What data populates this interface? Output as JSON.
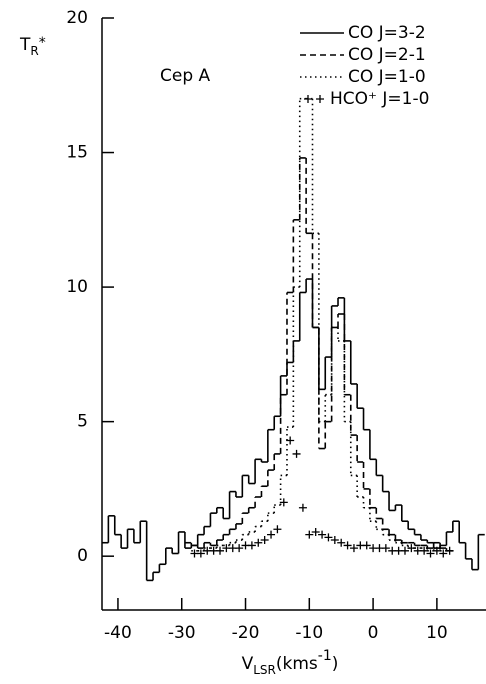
{
  "chart_data": {
    "type": "line",
    "annotation": "Cep A",
    "xlabel": [
      {
        "text": "V"
      },
      {
        "text": "LSR",
        "shift": "sub"
      },
      {
        "text": "(kms"
      },
      {
        "text": "-1",
        "shift": "super"
      },
      {
        "text": ")"
      }
    ],
    "ylabel": [
      {
        "text": "T"
      },
      {
        "text": "R",
        "shift": "sub"
      },
      {
        "text": "*",
        "shift": "super"
      }
    ],
    "xlim": [
      -42.5,
      17.7
    ],
    "xticks": [
      -40,
      -30,
      -20,
      -10,
      0,
      10
    ],
    "ylim": [
      -2,
      20
    ],
    "yticks": [
      0,
      5,
      10,
      15,
      20
    ],
    "legend": "upper right",
    "series": [
      {
        "name": "CO J=3-2",
        "color": "#000000",
        "style": "solid",
        "x": [
          -42,
          -41,
          -40,
          -39,
          -38,
          -37,
          -36,
          -35,
          -34,
          -33,
          -32,
          -31,
          -30,
          -29,
          -28,
          -27,
          -26,
          -25,
          -24,
          -23,
          -22,
          -21,
          -20,
          -19,
          -18,
          -17,
          -16,
          -15,
          -14,
          -13,
          -12,
          -11,
          -10,
          -9,
          -8,
          -7,
          -6,
          -5,
          -4,
          -3,
          -2,
          -1,
          0,
          1,
          2,
          3,
          4,
          5,
          6,
          7,
          8,
          9,
          10,
          11,
          12,
          13,
          14,
          15,
          16,
          17
        ],
        "values": [
          0.5,
          1.5,
          0.8,
          0.3,
          1.0,
          0.5,
          1.3,
          -0.9,
          -0.6,
          -0.3,
          0.3,
          0.1,
          0.9,
          0.3,
          0.4,
          0.8,
          1.1,
          1.6,
          1.8,
          1.4,
          2.4,
          2.2,
          3.0,
          2.7,
          3.6,
          3.5,
          4.7,
          5.2,
          6.7,
          7.2,
          8.0,
          9.8,
          10.3,
          8.5,
          6.2,
          7.4,
          9.3,
          9.6,
          8.0,
          6.4,
          5.5,
          4.7,
          3.6,
          3.0,
          2.4,
          1.7,
          1.9,
          1.3,
          1.0,
          0.8,
          0.6,
          0.5,
          0.3,
          0.4,
          0.9,
          1.3,
          0.5,
          -0.1,
          -0.5,
          0.8
        ]
      },
      {
        "name": "CO J=2-1",
        "color": "#000000",
        "style": "dashed",
        "x": [
          -29,
          -28,
          -27,
          -26,
          -25,
          -24,
          -23,
          -22,
          -21,
          -20,
          -19,
          -18,
          -17,
          -16,
          -15,
          -14,
          -13,
          -12,
          -11,
          -10,
          -9,
          -8,
          -7,
          -6,
          -5,
          -4,
          -3,
          -2,
          -1,
          0,
          1,
          2,
          3,
          4,
          5,
          6,
          7,
          8,
          9,
          10,
          11,
          12
        ],
        "values": [
          0.5,
          0.4,
          0.3,
          0.5,
          0.4,
          0.6,
          0.8,
          1.0,
          1.2,
          1.6,
          1.8,
          2.2,
          2.6,
          3.2,
          3.8,
          6.0,
          9.8,
          12.5,
          14.8,
          12.0,
          8.5,
          4.0,
          5.0,
          8.5,
          9.0,
          6.0,
          4.5,
          3.5,
          2.5,
          1.8,
          1.4,
          1.0,
          0.8,
          0.6,
          0.5,
          0.5,
          0.4,
          0.4,
          0.3,
          0.5,
          0.3,
          0.2
        ]
      },
      {
        "name": "CO J=1-0",
        "color": "#000000",
        "style": "dotted",
        "x": [
          -28,
          -27,
          -26,
          -25,
          -24,
          -23,
          -22,
          -21,
          -20,
          -19,
          -18,
          -17,
          -16,
          -15,
          -14,
          -13,
          -12,
          -11,
          -10,
          -9,
          -8,
          -7,
          -6,
          -5,
          -4,
          -3,
          -2,
          -1,
          0,
          1,
          2,
          3,
          4,
          5,
          6,
          7,
          8,
          9,
          10,
          11,
          12
        ],
        "values": [
          0.2,
          0.2,
          0.3,
          0.3,
          0.4,
          0.4,
          0.5,
          0.6,
          0.8,
          0.9,
          1.1,
          1.3,
          1.6,
          1.9,
          3.0,
          4.8,
          10.0,
          17.0,
          17.0,
          12.0,
          5.0,
          6.0,
          8.5,
          8.0,
          5.0,
          3.0,
          2.2,
          1.8,
          1.3,
          1.0,
          0.8,
          0.6,
          0.5,
          0.4,
          0.3,
          0.3,
          0.3,
          0.2,
          0.3,
          0.2,
          0.2
        ]
      },
      {
        "name": "HCO⁺ J=1-0",
        "color": "#000000",
        "style": "plus",
        "x": [
          -28,
          -27,
          -26,
          -25,
          -24,
          -23,
          -22,
          -21,
          -20,
          -19,
          -18,
          -17,
          -16,
          -15,
          -14,
          -13,
          -12,
          -11,
          -10,
          -9,
          -8,
          -7,
          -6,
          -5,
          -4,
          -3,
          -2,
          -1,
          0,
          1,
          2,
          3,
          4,
          5,
          6,
          7,
          8,
          9,
          10,
          11,
          12
        ],
        "values": [
          0.1,
          0.1,
          0.2,
          0.2,
          0.2,
          0.3,
          0.3,
          0.3,
          0.4,
          0.4,
          0.5,
          0.6,
          0.8,
          1.0,
          2.0,
          4.3,
          3.8,
          1.8,
          0.8,
          0.9,
          0.8,
          0.7,
          0.6,
          0.5,
          0.4,
          0.3,
          0.4,
          0.4,
          0.3,
          0.3,
          0.3,
          0.2,
          0.2,
          0.2,
          0.3,
          0.2,
          0.2,
          0.1,
          0.2,
          0.1,
          0.2
        ]
      }
    ]
  }
}
